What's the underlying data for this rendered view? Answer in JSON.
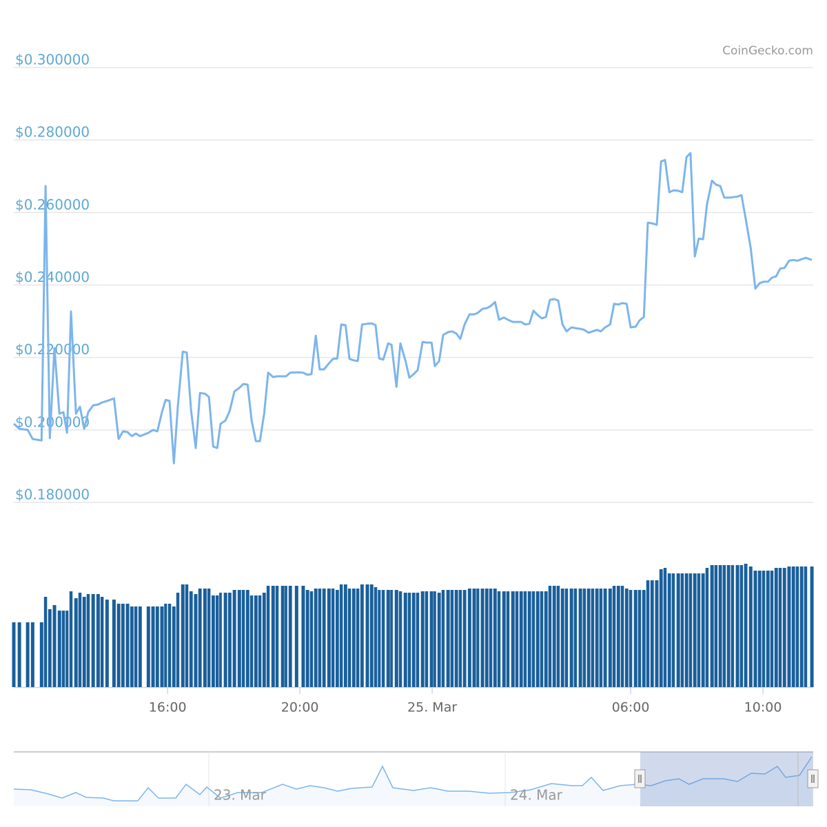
{
  "chart_data": {
    "type": "line",
    "credits": "CoinGecko.com",
    "x": [
      11.35,
      11.52,
      11.77,
      11.92,
      12.19,
      12.31,
      12.44,
      12.58,
      12.73,
      12.85,
      12.96,
      13.08,
      13.23,
      13.35,
      13.48,
      13.6,
      13.75,
      13.9,
      14.02,
      14.17,
      14.38,
      14.52,
      14.65,
      14.79,
      14.92,
      15.04,
      15.17,
      15.42,
      15.56,
      15.69,
      15.83,
      15.94,
      16.06,
      16.19,
      16.31,
      16.46,
      16.58,
      16.71,
      16.85,
      16.98,
      17.13,
      17.25,
      17.38,
      17.5,
      17.6,
      17.75,
      17.88,
      18.02,
      18.17,
      18.29,
      18.42,
      18.54,
      18.67,
      18.79,
      18.92,
      19.04,
      19.19,
      19.31,
      19.48,
      19.58,
      19.71,
      19.9,
      20.1,
      20.23,
      20.35,
      20.48,
      20.6,
      20.73,
      20.88,
      21.0,
      21.13,
      21.25,
      21.38,
      21.5,
      21.63,
      21.75,
      21.88,
      22.04,
      22.17,
      22.29,
      22.4,
      22.52,
      22.67,
      22.77,
      22.92,
      23.04,
      23.19,
      23.31,
      23.44,
      23.56,
      23.71,
      23.83,
      23.98,
      24.08,
      24.21,
      24.33,
      24.48,
      24.6,
      24.73,
      24.85,
      24.98,
      25.13,
      25.27,
      25.38,
      25.52,
      25.65,
      25.77,
      25.9,
      26.02,
      26.17,
      26.29,
      26.44,
      26.56,
      26.69,
      26.81,
      26.94,
      27.06,
      27.19,
      27.31,
      27.44,
      27.56,
      27.69,
      27.81,
      27.94,
      28.06,
      28.21,
      28.33,
      28.48,
      28.6,
      28.73,
      28.85,
      28.98,
      29.1,
      29.23,
      29.38,
      29.5,
      29.63,
      29.75,
      29.88,
      30.0,
      30.15,
      30.27,
      30.4,
      30.52,
      30.65,
      30.79,
      30.92,
      31.04,
      31.17,
      31.29,
      31.44,
      31.56,
      31.69,
      31.81,
      31.94,
      32.06,
      32.19,
      32.31,
      32.46,
      32.58,
      32.71,
      32.83,
      32.96,
      33.08,
      33.23,
      33.35,
      33.48,
      33.63,
      33.77,
      33.9,
      34.02,
      34.15,
      34.27,
      34.4,
      34.52,
      34.65,
      34.79,
      34.92,
      35.04,
      35.17,
      35.29,
      35.48
    ],
    "series": [
      {
        "color": "#7cb5ec",
        "values": [
          0.2017,
          0.2003,
          0.2,
          0.1975,
          0.1971,
          0.2673,
          0.1977,
          0.2226,
          0.2045,
          0.2049,
          0.1992,
          0.2327,
          0.2045,
          0.2064,
          0.2003,
          0.2049,
          0.2068,
          0.207,
          0.2076,
          0.208,
          0.2087,
          0.1975,
          0.1996,
          0.1994,
          0.1983,
          0.199,
          0.1983,
          0.1992,
          0.2,
          0.1996,
          0.2049,
          0.2083,
          0.208,
          0.1908,
          0.2064,
          0.2216,
          0.2214,
          0.2055,
          0.195,
          0.2102,
          0.21,
          0.2091,
          0.1954,
          0.195,
          0.2017,
          0.2026,
          0.2053,
          0.2106,
          0.2116,
          0.2127,
          0.2125,
          0.2026,
          0.1969,
          0.1969,
          0.2045,
          0.2158,
          0.2146,
          0.2148,
          0.2148,
          0.2148,
          0.2158,
          0.2159,
          0.2158,
          0.2152,
          0.2154,
          0.226,
          0.2167,
          0.2167,
          0.2184,
          0.2196,
          0.2197,
          0.2291,
          0.2289,
          0.2196,
          0.2192,
          0.219,
          0.2291,
          0.2293,
          0.2294,
          0.2289,
          0.2197,
          0.2194,
          0.2239,
          0.2235,
          0.2119,
          0.2239,
          0.2192,
          0.2144,
          0.2154,
          0.2165,
          0.2243,
          0.2241,
          0.2241,
          0.2176,
          0.219,
          0.2262,
          0.227,
          0.2272,
          0.2266,
          0.2251,
          0.2291,
          0.2319,
          0.2319,
          0.2323,
          0.2334,
          0.2336,
          0.2342,
          0.2353,
          0.2304,
          0.231,
          0.2304,
          0.2298,
          0.2298,
          0.2298,
          0.2291,
          0.2293,
          0.2329,
          0.2317,
          0.2308,
          0.2312,
          0.2359,
          0.2361,
          0.2357,
          0.2291,
          0.2272,
          0.2283,
          0.2281,
          0.2279,
          0.2276,
          0.2268,
          0.2272,
          0.2276,
          0.2272,
          0.2283,
          0.2291,
          0.2348,
          0.2346,
          0.235,
          0.2348,
          0.2283,
          0.2285,
          0.2302,
          0.2312,
          0.2572,
          0.257,
          0.2566,
          0.2741,
          0.2745,
          0.2656,
          0.2661,
          0.266,
          0.2656,
          0.2753,
          0.2764,
          0.2479,
          0.2528,
          0.2526,
          0.2623,
          0.2688,
          0.2677,
          0.2673,
          0.2641,
          0.2641,
          0.2642,
          0.2644,
          0.2648,
          0.2582,
          0.2502,
          0.239,
          0.2405,
          0.2409,
          0.2409,
          0.242,
          0.2424,
          0.2445,
          0.2447,
          0.2467,
          0.2469,
          0.2467,
          0.2471,
          0.2475,
          0.2469
        ]
      },
      {
        "type": "bar",
        "axis": "y2",
        "color": "#1a5f9b",
        "values": [
          94,
          94,
          94,
          94,
          94,
          131,
          113,
          119,
          111,
          111,
          111,
          139,
          129,
          137,
          131,
          135,
          135,
          135,
          131,
          127,
          127,
          121,
          121,
          121,
          117,
          117,
          117,
          117,
          117,
          117,
          117,
          121,
          121,
          117,
          137,
          149,
          149,
          139,
          135,
          143,
          143,
          143,
          133,
          133,
          137,
          137,
          137,
          141,
          141,
          141,
          141,
          133,
          133,
          133,
          137,
          147,
          147,
          147,
          147,
          147,
          147,
          147,
          147,
          141,
          139,
          143,
          143,
          143,
          143,
          143,
          141,
          149,
          149,
          143,
          143,
          143,
          149,
          149,
          149,
          145,
          141,
          141,
          141,
          141,
          141,
          139,
          137,
          137,
          137,
          137,
          139,
          139,
          139,
          139,
          137,
          141,
          141,
          141,
          141,
          141,
          141,
          143,
          143,
          143,
          143,
          143,
          143,
          143,
          139,
          139,
          139,
          139,
          139,
          139,
          139,
          139,
          139,
          139,
          139,
          139,
          147,
          147,
          147,
          143,
          143,
          143,
          143,
          143,
          143,
          143,
          143,
          143,
          143,
          143,
          143,
          147,
          147,
          147,
          143,
          141,
          141,
          141,
          141,
          155,
          155,
          155,
          171,
          173,
          165,
          165,
          165,
          165,
          165,
          165,
          165,
          165,
          165,
          173,
          177,
          177,
          177,
          177,
          177,
          177,
          177,
          177,
          179,
          175,
          169,
          169,
          169,
          169,
          169,
          173,
          173,
          173,
          175,
          175,
          175,
          175,
          175,
          175
        ]
      }
    ],
    "xlim": [
      11.35,
      35.52
    ],
    "xticks": [
      {
        "value": 16,
        "label": "16:00"
      },
      {
        "value": 20,
        "label": "20:00"
      },
      {
        "value": 24,
        "label": "25. Mar"
      },
      {
        "value": 30,
        "label": "06:00"
      },
      {
        "value": 34,
        "label": "10:00"
      }
    ],
    "ylim": [
      0.18,
      0.3
    ],
    "yticks": [
      {
        "value": 0.18,
        "label": "$0.180000"
      },
      {
        "value": 0.2,
        "label": "$0.200000"
      },
      {
        "value": 0.22,
        "label": "$0.220000"
      },
      {
        "value": 0.24,
        "label": "$0.240000"
      },
      {
        "value": 0.26,
        "label": "$0.260000"
      },
      {
        "value": 0.28,
        "label": "$0.280000"
      },
      {
        "value": 0.3,
        "label": "$0.300000"
      }
    ],
    "y2lim": [
      0,
      240
    ],
    "grid": true,
    "navigator_labels": [
      "23. Mar",
      "24. Mar"
    ]
  }
}
